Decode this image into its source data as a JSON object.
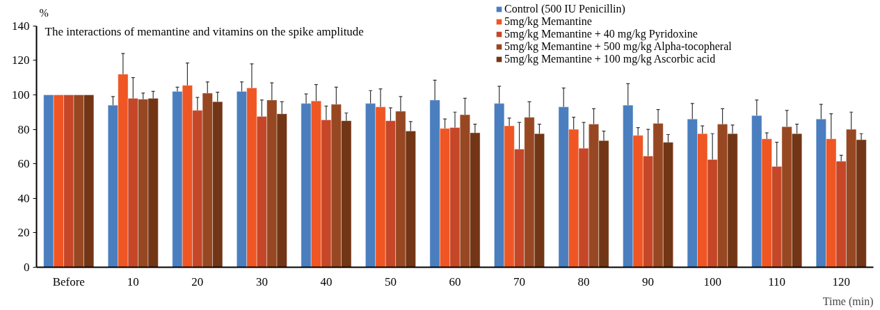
{
  "chart_data": {
    "type": "bar",
    "annotations": [
      "The interactions of memantine and vitamins on the spike amplitude"
    ],
    "ylabel": "%",
    "xlabel": "Time (min)",
    "categories": [
      "Before",
      "10",
      "20",
      "30",
      "40",
      "50",
      "60",
      "70",
      "80",
      "90",
      "100",
      "110",
      "120"
    ],
    "ylim": [
      0,
      140
    ],
    "yticks": [
      0,
      20,
      40,
      60,
      80,
      100,
      120,
      140
    ],
    "grid": false,
    "legend": "top right",
    "series": [
      {
        "name": "Control (500 IU Penicillin)",
        "color": "#4a7ebf",
        "values": [
          100,
          94,
          102,
          102,
          95,
          95,
          97,
          95,
          93,
          94,
          86,
          88,
          86
        ],
        "errors": [
          null,
          [
            94,
            99
          ],
          [
            102,
            104.5
          ],
          [
            102,
            107.5
          ],
          [
            95,
            100.5
          ],
          [
            95,
            102.5
          ],
          [
            97,
            108.5
          ],
          [
            95,
            105
          ],
          [
            93,
            104
          ],
          [
            94,
            106.5
          ],
          [
            86,
            95
          ],
          [
            88,
            97
          ],
          [
            86,
            94.5
          ]
        ]
      },
      {
        "name": "5mg/kg Memantine",
        "color": "#ef5623",
        "values": [
          100,
          112,
          105.5,
          104,
          96.5,
          93,
          80.5,
          82,
          80,
          76.5,
          77.5,
          74.5,
          74.5
        ],
        "errors": [
          null,
          [
            112,
            124
          ],
          [
            105.5,
            118.5
          ],
          [
            104,
            118
          ],
          [
            96.5,
            106
          ],
          [
            93,
            103.5
          ],
          [
            80.5,
            86
          ],
          [
            82,
            86.5
          ],
          [
            80,
            87
          ],
          [
            76.5,
            81
          ],
          [
            77.5,
            82
          ],
          [
            74.5,
            78
          ],
          [
            74.5,
            89
          ]
        ]
      },
      {
        "name": "5mg/kg Memantine + 40 mg/kg Pyridoxine",
        "color": "#c54728",
        "values": [
          100,
          98,
          91,
          87.5,
          85.5,
          85,
          81,
          68.5,
          69,
          64.5,
          62.5,
          58.5,
          61.5
        ],
        "errors": [
          null,
          [
            98,
            110
          ],
          [
            91,
            98.5
          ],
          [
            87.5,
            97
          ],
          [
            85.5,
            93.5
          ],
          [
            85,
            92.5
          ],
          [
            81,
            90
          ],
          [
            68.5,
            84
          ],
          [
            69,
            84
          ],
          [
            64.5,
            80
          ],
          [
            62.5,
            77.5
          ],
          [
            58.5,
            72.5
          ],
          [
            61.5,
            65
          ]
        ]
      },
      {
        "name": "5mg/kg Memantine + 500 mg/kg Alpha-tocopheral",
        "color": "#974822",
        "values": [
          100,
          97.5,
          101,
          97,
          94.5,
          90.5,
          88.5,
          87,
          83,
          83.5,
          83,
          81.5,
          80
        ],
        "errors": [
          null,
          [
            97.5,
            101
          ],
          [
            101,
            107.5
          ],
          [
            97,
            107
          ],
          [
            94.5,
            104.5
          ],
          [
            90.5,
            99
          ],
          [
            88.5,
            98
          ],
          [
            87,
            96
          ],
          [
            83,
            92
          ],
          [
            83.5,
            91.5
          ],
          [
            83,
            92
          ],
          [
            81.5,
            91
          ],
          [
            80,
            90
          ]
        ]
      },
      {
        "name": "5mg/kg Memantine + 100 mg/kg Ascorbic acid",
        "color": "#723616",
        "values": [
          100,
          98,
          96,
          89,
          85,
          79,
          78,
          77.5,
          73.5,
          72.5,
          77.5,
          77.5,
          74
        ],
        "errors": [
          null,
          [
            98,
            102
          ],
          [
            96,
            101.5
          ],
          [
            89,
            96
          ],
          [
            85,
            89.5
          ],
          [
            79,
            84.5
          ],
          [
            78,
            83
          ],
          [
            77.5,
            83
          ],
          [
            73.5,
            79
          ],
          [
            72.5,
            77
          ],
          [
            77.5,
            82.5
          ],
          [
            77.5,
            83
          ],
          [
            74,
            77.5
          ]
        ]
      }
    ]
  }
}
